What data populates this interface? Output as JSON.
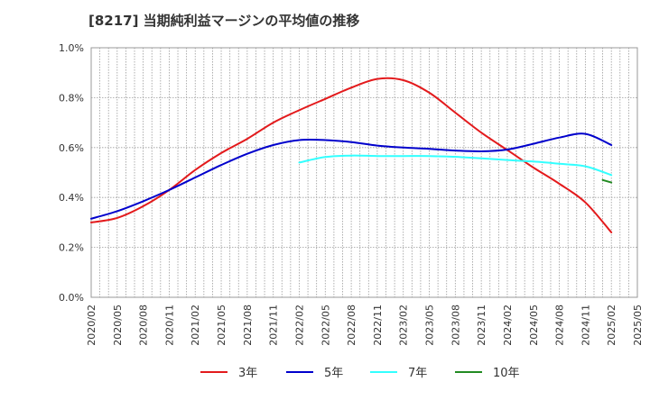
{
  "chart_data": {
    "type": "line",
    "title": "[8217]  当期純利益マージンの平均値の推移",
    "ylim": [
      0,
      1.0
    ],
    "y_ticks": [
      "0.0%",
      "0.2%",
      "0.4%",
      "0.6%",
      "0.8%",
      "1.0%"
    ],
    "y_tick_values": [
      0,
      0.2,
      0.4,
      0.6,
      0.8,
      1.0
    ],
    "x_ticks": [
      "2020/02",
      "2020/05",
      "2020/08",
      "2020/11",
      "2021/02",
      "2021/05",
      "2021/08",
      "2021/11",
      "2022/02",
      "2022/05",
      "2022/08",
      "2022/11",
      "2023/02",
      "2023/05",
      "2023/08",
      "2023/11",
      "2024/02",
      "2024/05",
      "2024/08",
      "2024/11",
      "2025/02",
      "2025/05"
    ],
    "x_range": [
      "2020/02",
      "2025/05"
    ],
    "grid": true,
    "legend_position": "bottom",
    "series": [
      {
        "name": "3年",
        "color": "#e31a1c",
        "points": [
          [
            "2020/02",
            0.3
          ],
          [
            "2020/05",
            0.318
          ],
          [
            "2020/08",
            0.365
          ],
          [
            "2020/11",
            0.43
          ],
          [
            "2021/02",
            0.51
          ],
          [
            "2021/05",
            0.578
          ],
          [
            "2021/08",
            0.635
          ],
          [
            "2021/11",
            0.7
          ],
          [
            "2022/02",
            0.75
          ],
          [
            "2022/05",
            0.795
          ],
          [
            "2022/08",
            0.84
          ],
          [
            "2022/11",
            0.875
          ],
          [
            "2023/02",
            0.87
          ],
          [
            "2023/05",
            0.82
          ],
          [
            "2023/08",
            0.74
          ],
          [
            "2023/11",
            0.66
          ],
          [
            "2024/02",
            0.59
          ],
          [
            "2024/05",
            0.52
          ],
          [
            "2024/08",
            0.455
          ],
          [
            "2024/11",
            0.38
          ],
          [
            "2025/02",
            0.26
          ]
        ]
      },
      {
        "name": "5年",
        "color": "#0000cc",
        "points": [
          [
            "2020/02",
            0.315
          ],
          [
            "2020/05",
            0.345
          ],
          [
            "2020/08",
            0.385
          ],
          [
            "2020/11",
            0.43
          ],
          [
            "2021/02",
            0.48
          ],
          [
            "2021/05",
            0.53
          ],
          [
            "2021/08",
            0.575
          ],
          [
            "2021/11",
            0.61
          ],
          [
            "2022/02",
            0.63
          ],
          [
            "2022/05",
            0.63
          ],
          [
            "2022/08",
            0.622
          ],
          [
            "2022/11",
            0.608
          ],
          [
            "2023/02",
            0.6
          ],
          [
            "2023/05",
            0.595
          ],
          [
            "2023/08",
            0.588
          ],
          [
            "2023/11",
            0.585
          ],
          [
            "2024/02",
            0.592
          ],
          [
            "2024/05",
            0.615
          ],
          [
            "2024/08",
            0.64
          ],
          [
            "2024/11",
            0.655
          ],
          [
            "2025/02",
            0.61
          ]
        ]
      },
      {
        "name": "7年",
        "color": "#33ffff",
        "points": [
          [
            "2022/02",
            0.54
          ],
          [
            "2022/05",
            0.562
          ],
          [
            "2022/08",
            0.568
          ],
          [
            "2022/11",
            0.566
          ],
          [
            "2023/02",
            0.566
          ],
          [
            "2023/05",
            0.566
          ],
          [
            "2023/08",
            0.563
          ],
          [
            "2023/11",
            0.557
          ],
          [
            "2024/02",
            0.55
          ],
          [
            "2024/05",
            0.544
          ],
          [
            "2024/08",
            0.535
          ],
          [
            "2024/11",
            0.525
          ],
          [
            "2025/02",
            0.49
          ]
        ]
      },
      {
        "name": "10年",
        "color": "#228b22",
        "points": [
          [
            "2025/01",
            0.47
          ],
          [
            "2025/02",
            0.46
          ]
        ]
      }
    ]
  }
}
